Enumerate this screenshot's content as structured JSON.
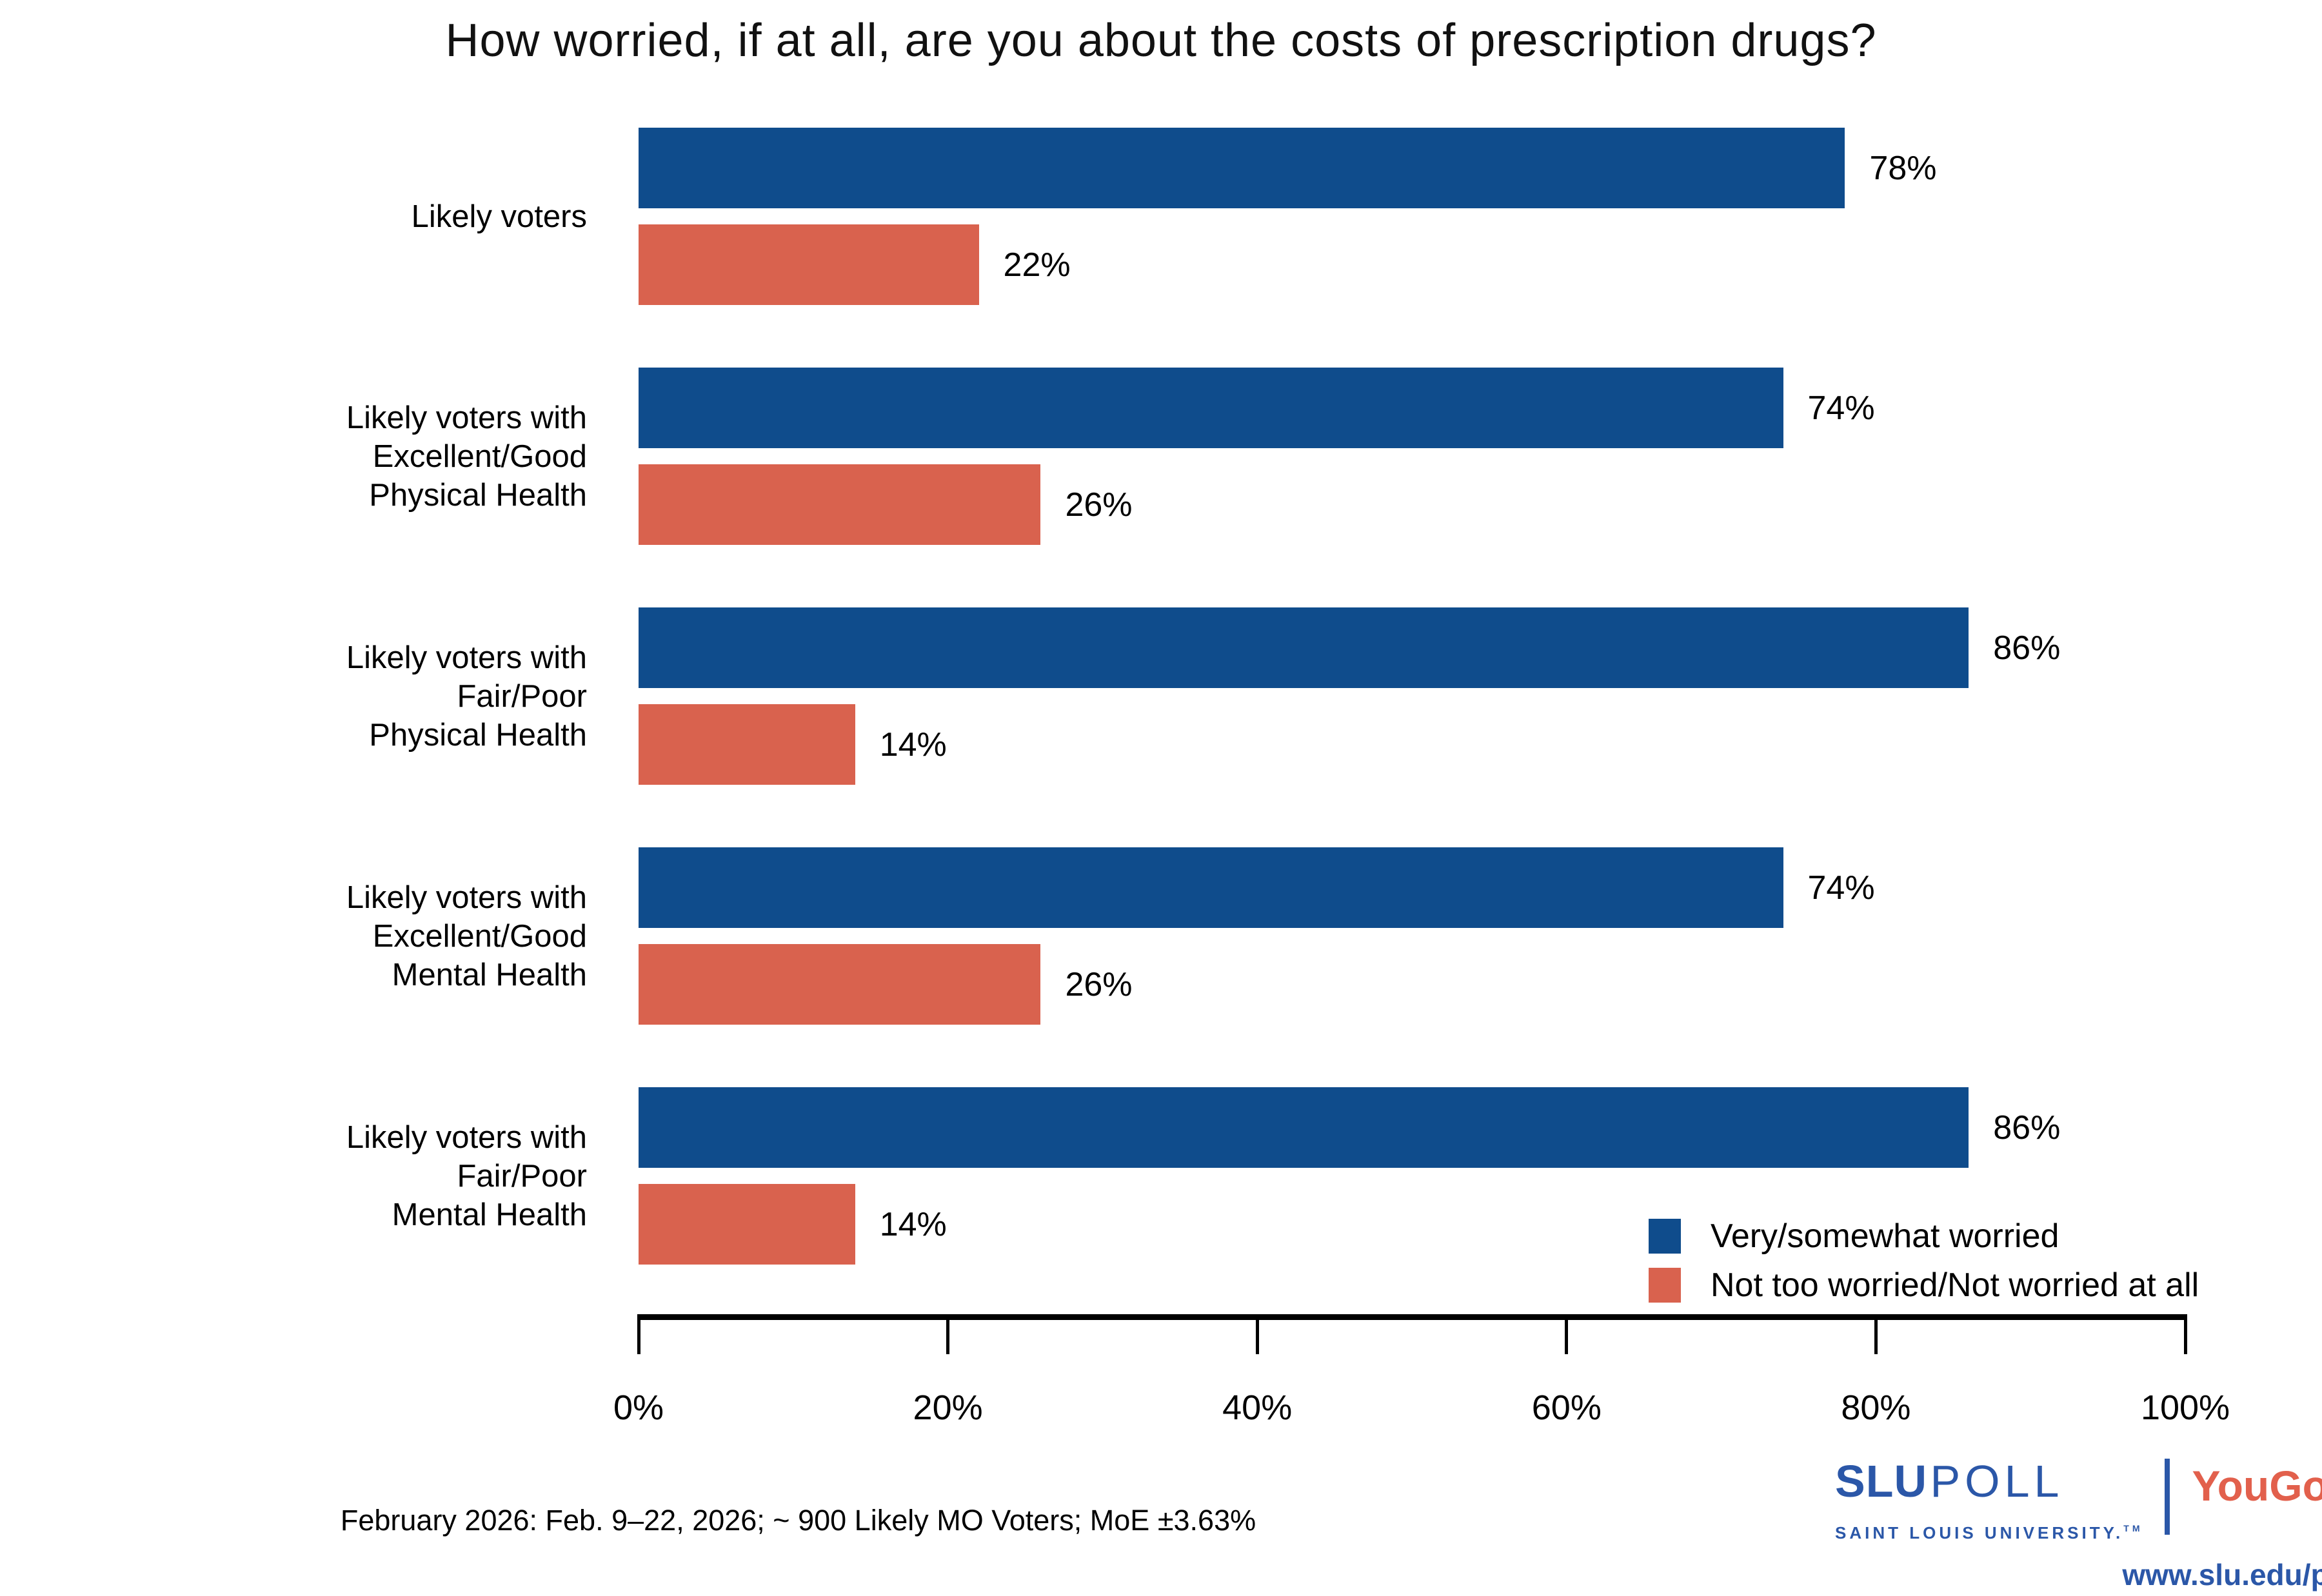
{
  "title": "How worried, if at all, are you about the costs of prescription drugs?",
  "chart_data": {
    "type": "bar",
    "orientation": "horizontal",
    "title": "How worried, if at all, are you about the costs of prescription drugs?",
    "categories": [
      "Likely voters",
      "Likely voters with Excellent/Good Physical Health",
      "Likely voters with Fair/Poor Physical Health",
      "Likely voters with Excellent/Good Mental Health",
      "Likely voters with Fair/Poor Mental Health"
    ],
    "category_label_lines": [
      [
        "Likely voters"
      ],
      [
        "Likely voters with",
        "Excellent/Good",
        "Physical Health"
      ],
      [
        "Likely voters with",
        "Fair/Poor",
        "Physical Health"
      ],
      [
        "Likely voters with",
        "Excellent/Good",
        "Mental Health"
      ],
      [
        "Likely voters with",
        "Fair/Poor",
        "Mental Health"
      ]
    ],
    "series": [
      {
        "name": "Very/somewhat worried",
        "color": "#0f4c8c",
        "values": [
          78,
          74,
          86,
          74,
          86
        ]
      },
      {
        "name": "Not too worried/Not worried at all",
        "color": "#d9624e",
        "values": [
          22,
          26,
          14,
          26,
          14
        ]
      }
    ],
    "value_suffix": "%",
    "xlim": [
      0,
      100
    ],
    "x_ticks": [
      "0%",
      "20%",
      "40%",
      "60%",
      "80%",
      "100%"
    ],
    "grid": false,
    "legend_position": "bottom-right"
  },
  "footer": {
    "note": "February 2026: Feb. 9–22, 2026; ~ 900 Likely MO Voters; MoE ±3.63%"
  },
  "branding": {
    "slu": "SLU",
    "poll": "POLL",
    "subtitle": "SAINT LOUIS UNIVERSITY.",
    "trademark": "TM",
    "partner": "YouGov",
    "registered": "®",
    "url": "www.slu.edu/poll",
    "slu_blue": "#2b57a8",
    "partner_red": "#e2604c"
  }
}
